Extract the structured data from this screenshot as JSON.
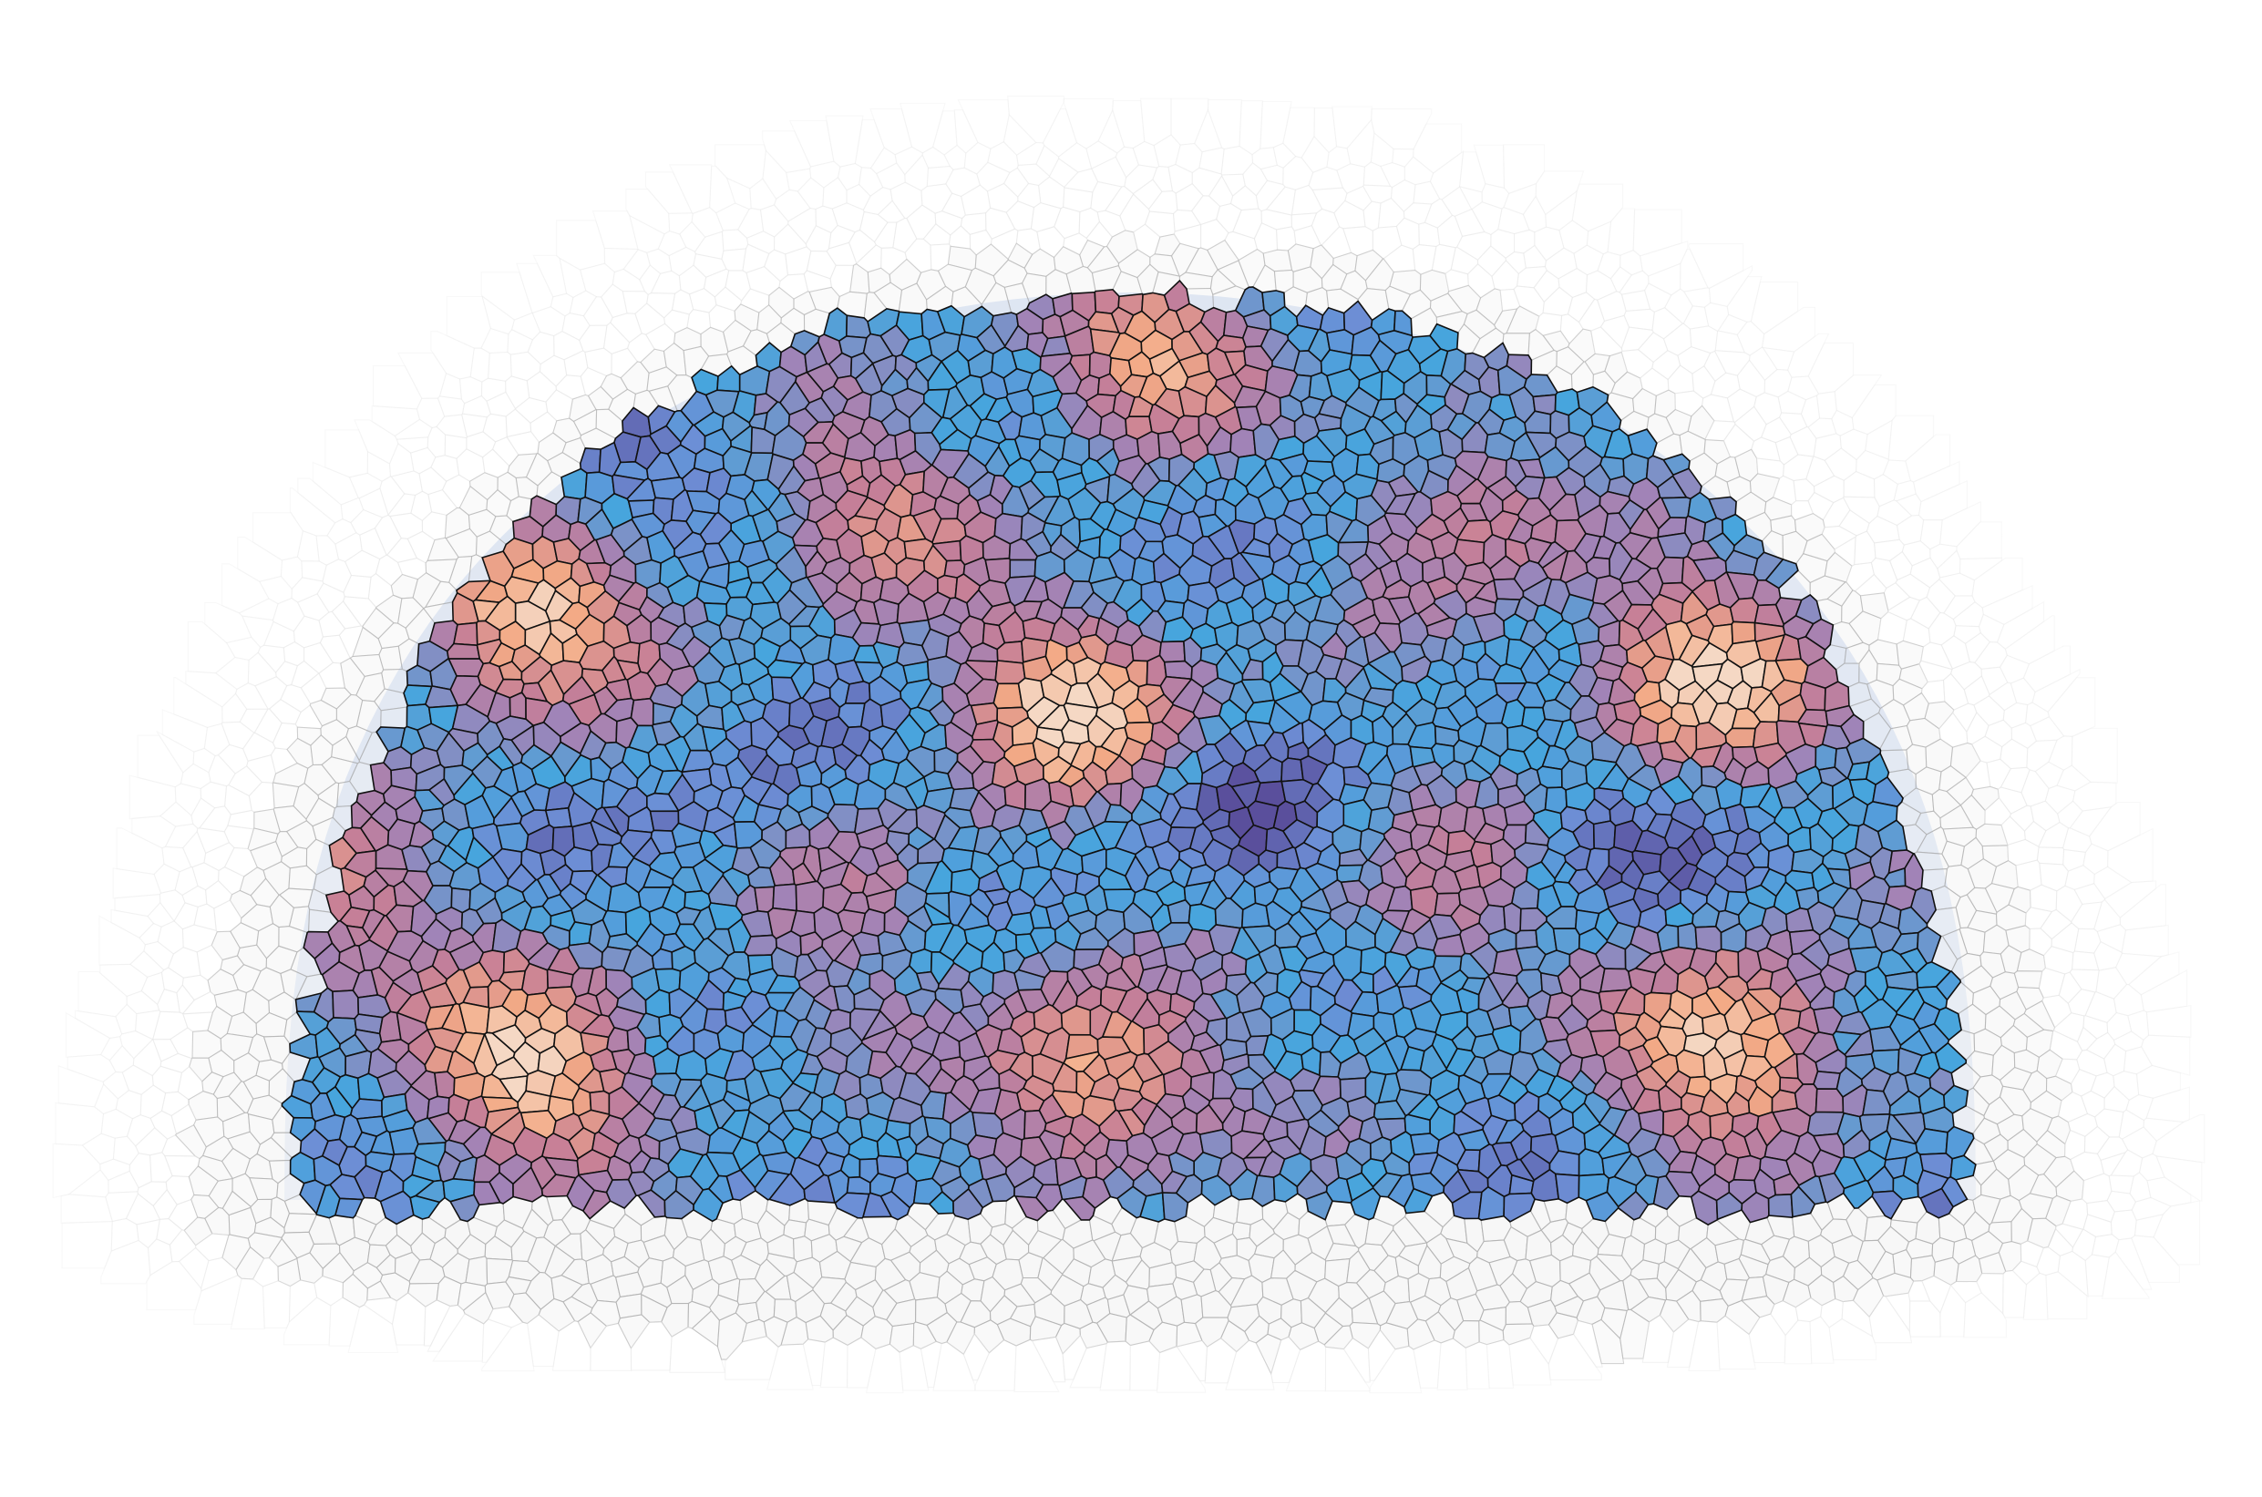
{
  "figure": {
    "type": "voronoi-mosaic",
    "shape": "half-ellipse dome with flat bottom",
    "halo": {
      "fill": "#f7f7f7",
      "stroke": "#b5b5b5",
      "edge_fill": "#ffffff",
      "edge_stroke": "#e6e6e6"
    },
    "core": {
      "outline": "#111111",
      "background": "#6f95d8",
      "palette": [
        "#5a4f9c",
        "#6e8fd6",
        "#47a6de",
        "#a184b8",
        "#c67f98",
        "#f3aa86",
        "#f5d8c4"
      ],
      "warm_spots": [
        {
          "u": 0.14,
          "v": 0.35,
          "strength": 1.0
        },
        {
          "u": 0.14,
          "v": 0.85,
          "strength": 1.0
        },
        {
          "u": 0.47,
          "v": 0.45,
          "strength": 1.0
        },
        {
          "u": 0.48,
          "v": 0.86,
          "strength": 0.9
        },
        {
          "u": 0.84,
          "v": 0.42,
          "strength": 1.0
        },
        {
          "u": 0.86,
          "v": 0.83,
          "strength": 1.0
        },
        {
          "u": 0.52,
          "v": 0.08,
          "strength": 0.85
        },
        {
          "u": 0.35,
          "v": 0.24,
          "strength": 0.55
        },
        {
          "u": 0.7,
          "v": 0.24,
          "strength": 0.55
        },
        {
          "u": 0.33,
          "v": 0.66,
          "strength": 0.45
        },
        {
          "u": 0.69,
          "v": 0.66,
          "strength": 0.45
        },
        {
          "u": 0.01,
          "v": 0.67,
          "strength": 0.6
        }
      ],
      "cool_spots": [
        {
          "u": 0.28,
          "v": 0.6
        },
        {
          "u": 0.56,
          "v": 0.58
        },
        {
          "u": 0.78,
          "v": 0.6
        },
        {
          "u": 0.56,
          "v": 0.19
        },
        {
          "u": 0.17,
          "v": 0.17
        },
        {
          "u": 0.92,
          "v": 0.16
        }
      ]
    }
  }
}
